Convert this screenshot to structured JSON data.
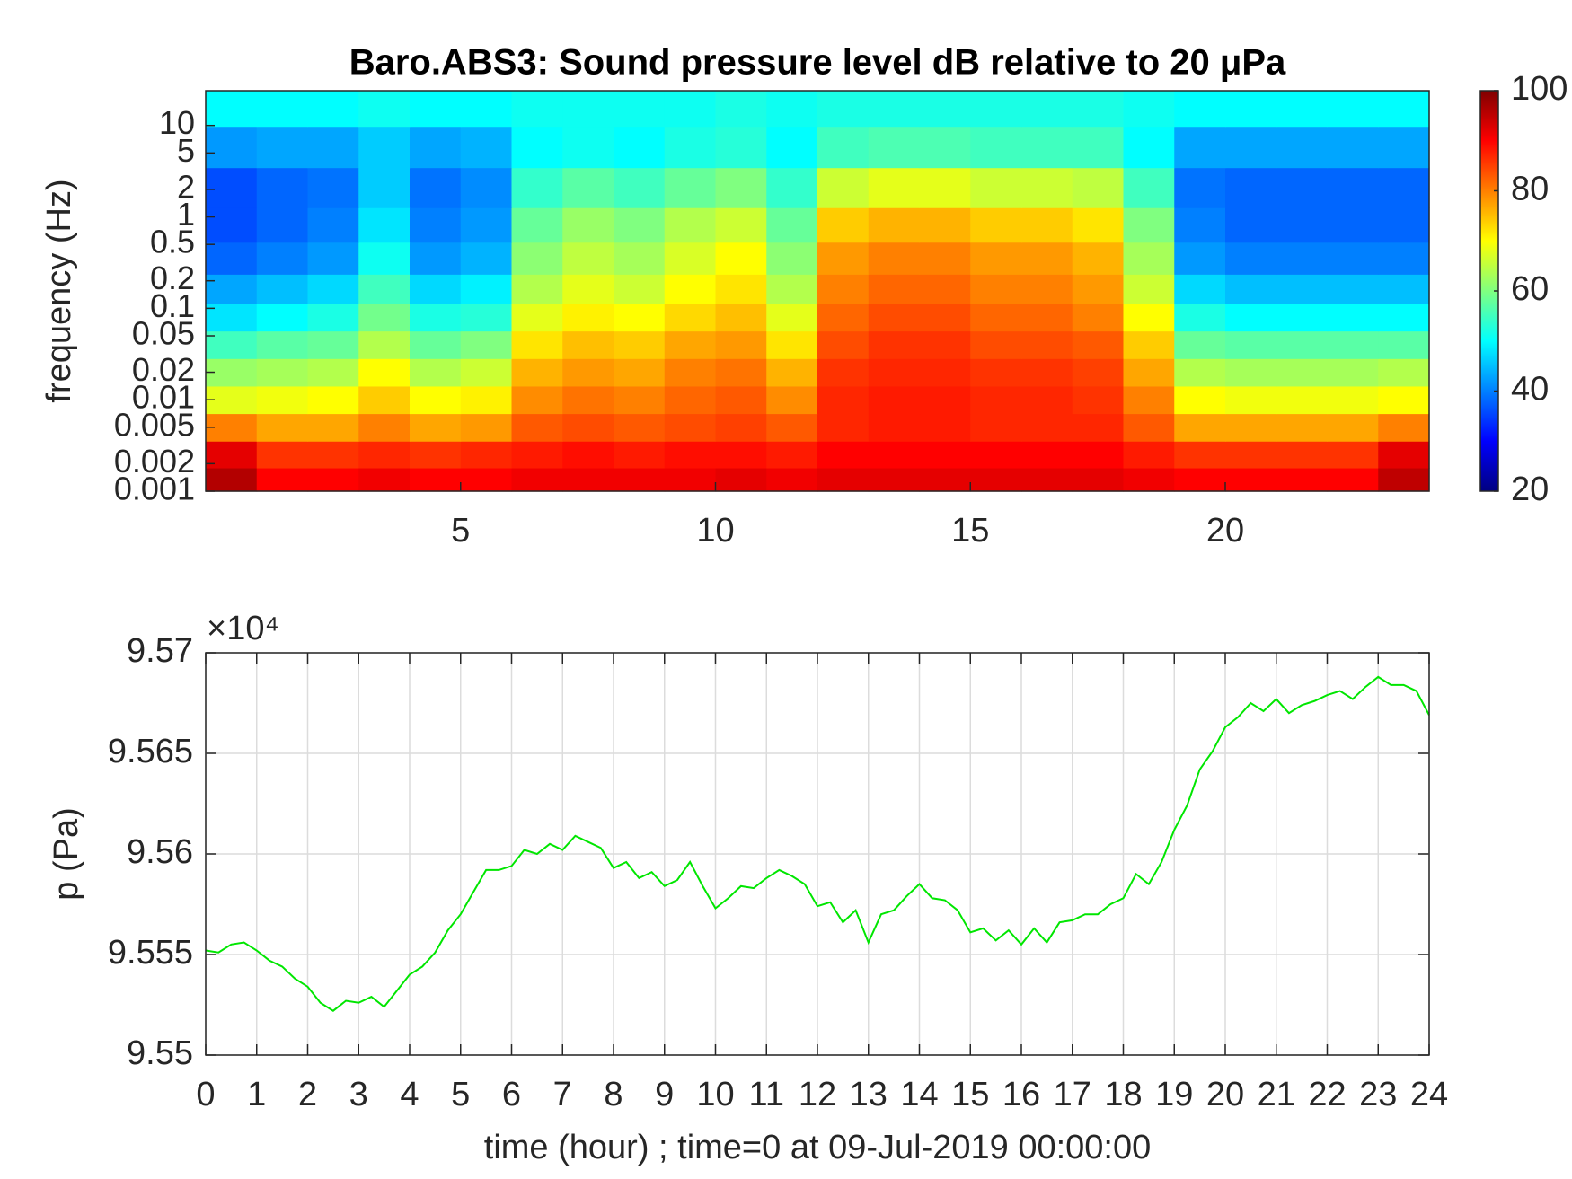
{
  "chart_data": [
    {
      "type": "heatmap",
      "title": "Baro.ABS3: Sound pressure level dB relative to 20 μPa",
      "y_label": "frequency (Hz)",
      "y_scale": "log",
      "xlim": [
        0,
        24
      ],
      "xticks": [
        5,
        10,
        15,
        20
      ],
      "ylim": [
        0.001,
        24
      ],
      "yticks": [
        0.001,
        0.002,
        0.005,
        0.01,
        0.02,
        0.05,
        0.1,
        0.2,
        0.5,
        1,
        2,
        5,
        10
      ],
      "colormap": "jet",
      "colorbar": {
        "lim": [
          20,
          100
        ],
        "ticks": [
          20,
          40,
          60,
          80,
          100
        ]
      },
      "x": [
        0.5,
        1.5,
        2.5,
        3.5,
        4.5,
        5.5,
        6.5,
        7.5,
        8.5,
        9.5,
        10.5,
        11.5,
        12.5,
        13.5,
        14.5,
        15.5,
        16.5,
        17.5,
        18.5,
        19.5,
        20.5,
        21.5,
        22.5,
        23.5
      ],
      "y": [
        0.0013,
        0.0025,
        0.005,
        0.01,
        0.02,
        0.04,
        0.08,
        0.16,
        0.35,
        0.8,
        2,
        6,
        16
      ],
      "z": [
        [
          96,
          90,
          90,
          91,
          90,
          90,
          91,
          91,
          91,
          91,
          92,
          91,
          92,
          92,
          92,
          92,
          92,
          92,
          91,
          90,
          90,
          90,
          90,
          95
        ],
        [
          92,
          86,
          86,
          87,
          86,
          87,
          88,
          89,
          88,
          89,
          89,
          88,
          90,
          90,
          90,
          90,
          90,
          90,
          88,
          86,
          86,
          86,
          86,
          92
        ],
        [
          80,
          77,
          77,
          80,
          77,
          78,
          83,
          84,
          83,
          84,
          85,
          83,
          87,
          88,
          88,
          87,
          87,
          87,
          83,
          77,
          77,
          77,
          77,
          80
        ],
        [
          68,
          69,
          70,
          74,
          70,
          71,
          79,
          81,
          80,
          82,
          83,
          79,
          87,
          88,
          88,
          87,
          87,
          86,
          80,
          70,
          69,
          69,
          69,
          70
        ],
        [
          62,
          63,
          64,
          70,
          64,
          66,
          76,
          78,
          77,
          80,
          81,
          76,
          86,
          87,
          87,
          86,
          86,
          85,
          77,
          64,
          63,
          63,
          63,
          64
        ],
        [
          55,
          57,
          58,
          64,
          58,
          60,
          72,
          75,
          74,
          77,
          78,
          72,
          84,
          86,
          86,
          84,
          84,
          83,
          74,
          58,
          57,
          57,
          57,
          57
        ],
        [
          48,
          50,
          52,
          59,
          52,
          53,
          68,
          71,
          70,
          73,
          75,
          68,
          82,
          84,
          84,
          82,
          82,
          80,
          70,
          52,
          50,
          50,
          50,
          50
        ],
        [
          43,
          45,
          47,
          55,
          47,
          49,
          64,
          68,
          66,
          70,
          72,
          64,
          80,
          82,
          82,
          80,
          80,
          78,
          66,
          47,
          45,
          45,
          45,
          45
        ],
        [
          38,
          40,
          42,
          51,
          42,
          44,
          61,
          65,
          63,
          67,
          70,
          61,
          78,
          80,
          80,
          78,
          78,
          76,
          63,
          42,
          40,
          40,
          40,
          40
        ],
        [
          36,
          38,
          40,
          48,
          40,
          42,
          58,
          62,
          60,
          64,
          66,
          58,
          74,
          76,
          76,
          74,
          74,
          72,
          60,
          40,
          38,
          38,
          38,
          38
        ],
        [
          36,
          38,
          39,
          46,
          39,
          41,
          54,
          57,
          55,
          58,
          60,
          54,
          66,
          68,
          68,
          66,
          66,
          65,
          55,
          39,
          38,
          38,
          38,
          38
        ],
        [
          42,
          43,
          43,
          46,
          43,
          44,
          50,
          51,
          50,
          52,
          53,
          50,
          55,
          56,
          56,
          55,
          55,
          55,
          50,
          43,
          43,
          43,
          43,
          43
        ],
        [
          50,
          50,
          50,
          51,
          50,
          50,
          51,
          51,
          51,
          51,
          52,
          51,
          52,
          52,
          52,
          52,
          52,
          52,
          51,
          50,
          50,
          50,
          50,
          50
        ]
      ]
    },
    {
      "type": "line",
      "x_label": "time (hour) ; time=0 at 09-Jul-2019 00:00:00",
      "y_label": "p (Pa)",
      "y_exponent": "×10⁴",
      "color": "#00e600",
      "grid": true,
      "xlim": [
        0,
        24
      ],
      "xticks": [
        0,
        1,
        2,
        3,
        4,
        5,
        6,
        7,
        8,
        9,
        10,
        11,
        12,
        13,
        14,
        15,
        16,
        17,
        18,
        19,
        20,
        21,
        22,
        23,
        24
      ],
      "ylim": [
        95500,
        95700
      ],
      "yticks": [
        {
          "value": 95500,
          "label": "9.55"
        },
        {
          "value": 95550,
          "label": "9.555"
        },
        {
          "value": 95600,
          "label": "9.56"
        },
        {
          "value": 95650,
          "label": "9.565"
        },
        {
          "value": 95700,
          "label": "9.57"
        }
      ],
      "x": [
        0,
        0.25,
        0.5,
        0.75,
        1,
        1.25,
        1.5,
        1.75,
        2,
        2.25,
        2.5,
        2.75,
        3,
        3.25,
        3.5,
        3.75,
        4,
        4.25,
        4.5,
        4.75,
        5,
        5.25,
        5.5,
        5.75,
        6,
        6.25,
        6.5,
        6.75,
        7,
        7.25,
        7.5,
        7.75,
        8,
        8.25,
        8.5,
        8.75,
        9,
        9.25,
        9.5,
        9.75,
        10,
        10.25,
        10.5,
        10.75,
        11,
        11.25,
        11.5,
        11.75,
        12,
        12.25,
        12.5,
        12.75,
        13,
        13.25,
        13.5,
        13.75,
        14,
        14.25,
        14.5,
        14.75,
        15,
        15.25,
        15.5,
        15.75,
        16,
        16.25,
        16.5,
        16.75,
        17,
        17.25,
        17.5,
        17.75,
        18,
        18.25,
        18.5,
        18.75,
        19,
        19.25,
        19.5,
        19.75,
        20,
        20.25,
        20.5,
        20.75,
        21,
        21.25,
        21.5,
        21.75,
        22,
        22.25,
        22.5,
        22.75,
        23,
        23.25,
        23.5,
        23.75,
        24
      ],
      "values": [
        95552,
        95551,
        95555,
        95556,
        95552,
        95547,
        95544,
        95538,
        95534,
        95526,
        95522,
        95527,
        95526,
        95529,
        95524,
        95532,
        95540,
        95544,
        95551,
        95562,
        95570,
        95581,
        95592,
        95592,
        95594,
        95602,
        95600,
        95605,
        95602,
        95609,
        95606,
        95603,
        95593,
        95596,
        95588,
        95591,
        95584,
        95587,
        95596,
        95584,
        95573,
        95578,
        95584,
        95583,
        95588,
        95592,
        95589,
        95585,
        95574,
        95576,
        95566,
        95572,
        95556,
        95570,
        95572,
        95579,
        95585,
        95578,
        95577,
        95572,
        95561,
        95563,
        95557,
        95562,
        95555,
        95563,
        95556,
        95566,
        95567,
        95570,
        95570,
        95575,
        95578,
        95590,
        95585,
        95596,
        95612,
        95624,
        95642,
        95651,
        95663,
        95668,
        95675,
        95671,
        95677,
        95670,
        95674,
        95676,
        95679,
        95681,
        95677,
        95683,
        95688,
        95684,
        95684,
        95681,
        95669
      ]
    }
  ]
}
